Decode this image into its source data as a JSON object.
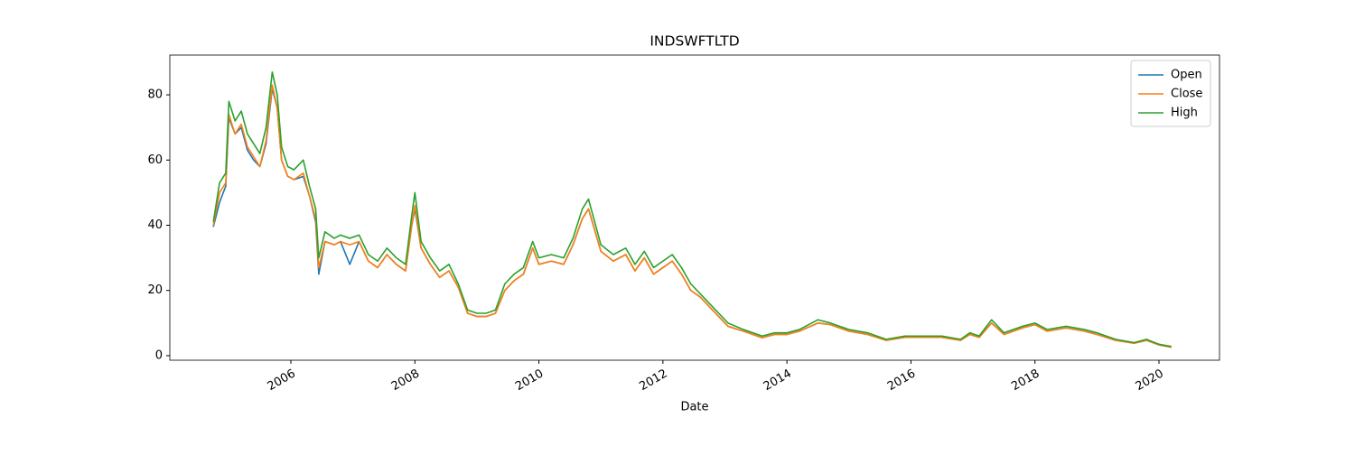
{
  "chart_data": {
    "type": "line",
    "title": "INDSWFTLTD",
    "xlabel": "Date",
    "x": [
      2004.75,
      2004.85,
      2004.95,
      2005.0,
      2005.1,
      2005.2,
      2005.3,
      2005.4,
      2005.5,
      2005.6,
      2005.7,
      2005.78,
      2005.85,
      2005.95,
      2006.05,
      2006.2,
      2006.3,
      2006.4,
      2006.45,
      2006.55,
      2006.7,
      2006.8,
      2006.95,
      2007.1,
      2007.25,
      2007.4,
      2007.55,
      2007.7,
      2007.85,
      2007.95,
      2008.0,
      2008.1,
      2008.25,
      2008.4,
      2008.55,
      2008.7,
      2008.85,
      2009.0,
      2009.15,
      2009.3,
      2009.45,
      2009.6,
      2009.75,
      2009.9,
      2010.0,
      2010.2,
      2010.4,
      2010.55,
      2010.7,
      2010.8,
      2011.0,
      2011.2,
      2011.4,
      2011.55,
      2011.7,
      2011.85,
      2012.0,
      2012.15,
      2012.3,
      2012.45,
      2012.6,
      2012.75,
      2012.9,
      2013.05,
      2013.3,
      2013.6,
      2013.8,
      2014.0,
      2014.2,
      2014.5,
      2014.7,
      2015.0,
      2015.3,
      2015.6,
      2015.9,
      2016.2,
      2016.5,
      2016.8,
      2016.95,
      2017.1,
      2017.3,
      2017.5,
      2017.8,
      2018.0,
      2018.2,
      2018.5,
      2018.8,
      2019.0,
      2019.3,
      2019.6,
      2019.8,
      2020.0,
      2020.2
    ],
    "series": [
      {
        "name": "Open",
        "color": "#1f77b4",
        "values": [
          39.5,
          47,
          52,
          73,
          68,
          70,
          63,
          60,
          58,
          65,
          82,
          76,
          60,
          55,
          54,
          55,
          49,
          41,
          25,
          35,
          34,
          35,
          28,
          35,
          29,
          27,
          31,
          28,
          26,
          40,
          45,
          33,
          28,
          24,
          26,
          21,
          13,
          12,
          12,
          13,
          20,
          23,
          25,
          33,
          28,
          29,
          28,
          34,
          42,
          45,
          32,
          29,
          31,
          26,
          30,
          25,
          27,
          29,
          25,
          20,
          18,
          15,
          12,
          9,
          7.5,
          5.5,
          6.5,
          6.5,
          7.5,
          10,
          9.5,
          7.5,
          6.5,
          4.7,
          5.6,
          5.6,
          5.6,
          4.7,
          6.5,
          5.6,
          10,
          6.5,
          8.5,
          9.5,
          7.5,
          8.5,
          7.5,
          6.5,
          4.7,
          3.8,
          4.7,
          3.3,
          2.6
        ]
      },
      {
        "name": "Close",
        "color": "#ff7f0e",
        "values": [
          40,
          50,
          53,
          74,
          68,
          71,
          64,
          61,
          58,
          66,
          83,
          76,
          60,
          55,
          54,
          56,
          49,
          42,
          27,
          35,
          34,
          35,
          34,
          35,
          29,
          27,
          31,
          28,
          26,
          40,
          46,
          33,
          28,
          24,
          26,
          21,
          13,
          12,
          12,
          13,
          20,
          23,
          25,
          33,
          28,
          29,
          28,
          34,
          42,
          45,
          32,
          29,
          31,
          26,
          30,
          25,
          27,
          29,
          25,
          20,
          18,
          15,
          12,
          9,
          7.5,
          5.5,
          6.5,
          6.5,
          7.5,
          10,
          9.5,
          7.5,
          6.5,
          4.7,
          5.6,
          5.6,
          5.6,
          4.7,
          6.5,
          5.6,
          10,
          6.5,
          8.5,
          9.5,
          7.5,
          8.5,
          7.5,
          6.5,
          4.7,
          3.8,
          4.7,
          3.3,
          2.6
        ]
      },
      {
        "name": "High",
        "color": "#2ca02c",
        "values": [
          41,
          53,
          56,
          78,
          72,
          75,
          68,
          65,
          62,
          70,
          87,
          80,
          64,
          58,
          57,
          60,
          52,
          45,
          30,
          38,
          36,
          37,
          36,
          37,
          31,
          29,
          33,
          30,
          28,
          43,
          50,
          35,
          30,
          26,
          28,
          22,
          14,
          13,
          13,
          14,
          22,
          25,
          27,
          35,
          30,
          31,
          30,
          36,
          45,
          48,
          34,
          31,
          33,
          28,
          32,
          27,
          29,
          31,
          27,
          22,
          19,
          16,
          13,
          10,
          8,
          6,
          7,
          7,
          8,
          11,
          10,
          8,
          7,
          5,
          6,
          6,
          6,
          5,
          7,
          6,
          11,
          7,
          9,
          10,
          8,
          9,
          8,
          7,
          5,
          4,
          5,
          3.5,
          2.8
        ]
      }
    ],
    "xlim": [
      2004.048,
      2020.976
    ],
    "xticks": [
      2006,
      2008,
      2010,
      2012,
      2014,
      2016,
      2018,
      2020
    ],
    "ylim": [
      -1.4,
      92.2
    ],
    "yticks": [
      0,
      20,
      40,
      60,
      80
    ],
    "legend": "upper right"
  }
}
